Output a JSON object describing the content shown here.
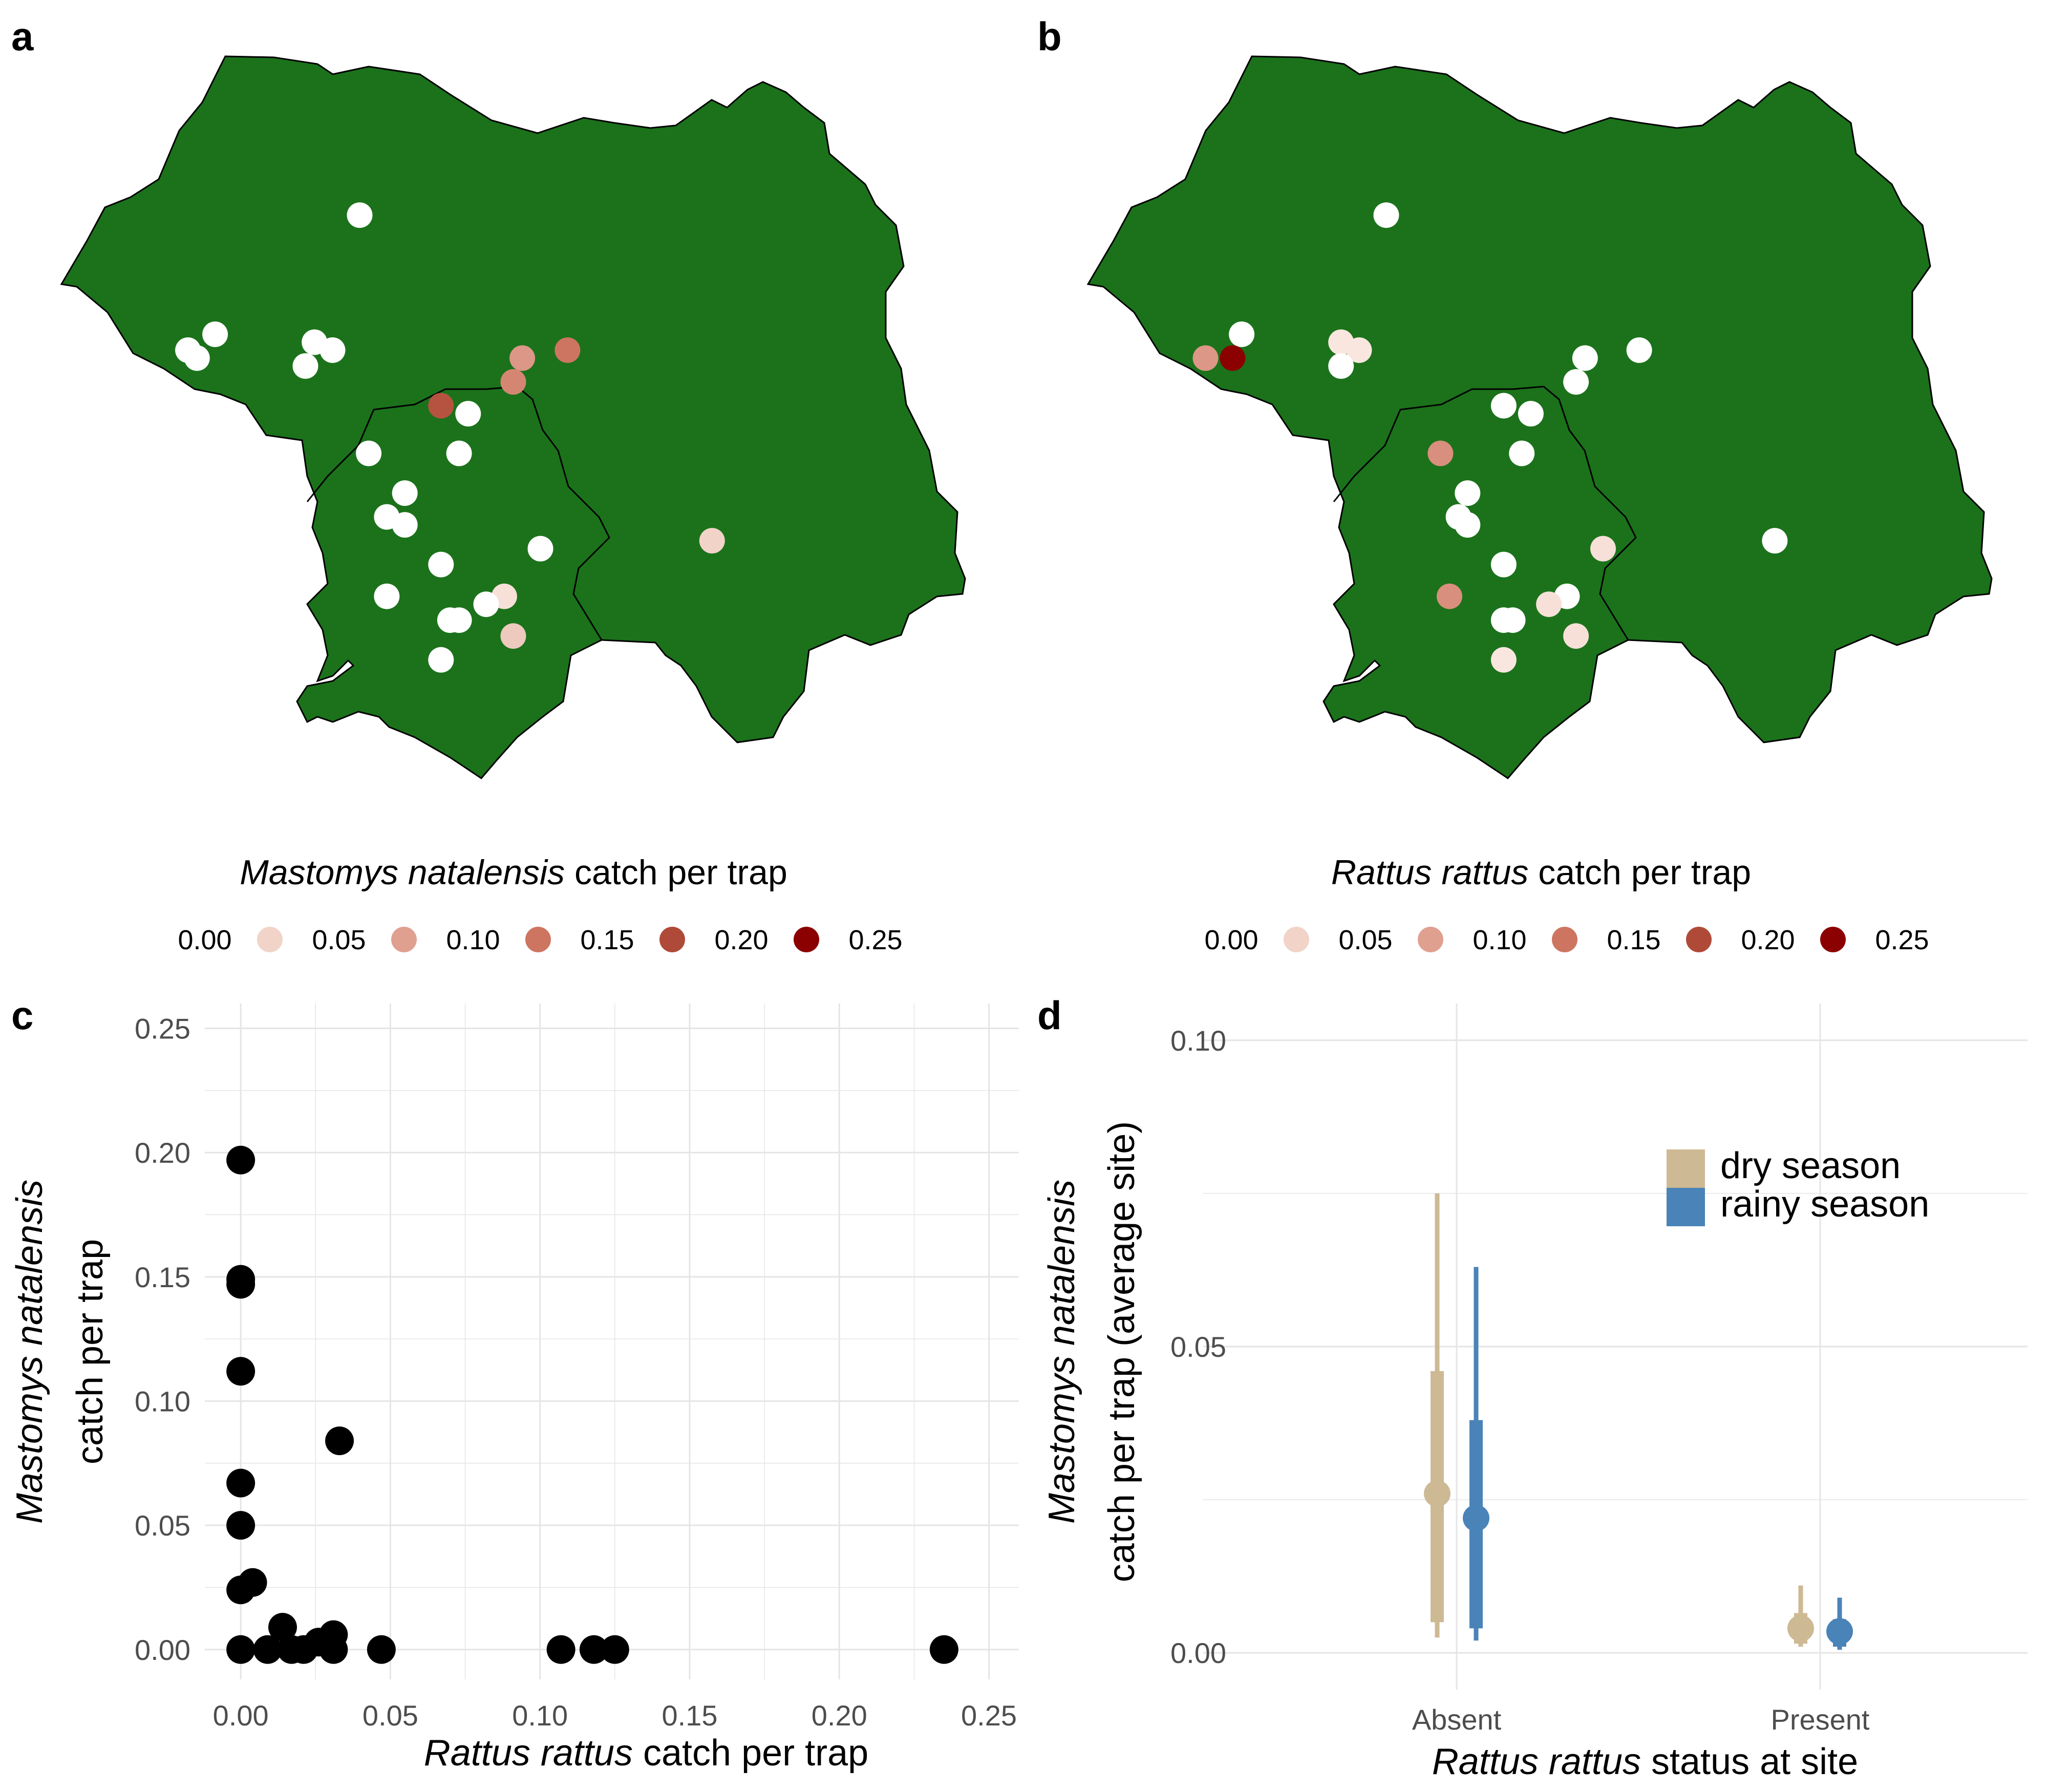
{
  "panels": {
    "a": {
      "letter": "a",
      "legend_title_italic": "Mastomys natalensis",
      "legend_title_rest": " catch per trap"
    },
    "b": {
      "letter": "b",
      "legend_title_italic": "Rattus rattus",
      "legend_title_rest": " catch per trap"
    },
    "c": {
      "letter": "c",
      "xlabel_italic": "Rattus rattus",
      "xlabel_rest": " catch per trap",
      "ylabel_line1": "Mastomys natalensis",
      "ylabel_line2": "catch per trap"
    },
    "d": {
      "letter": "d",
      "xlabel_italic": "Rattus rattus",
      "xlabel_rest": " status at site",
      "ylabel_line1": "Mastomys natalensis",
      "ylabel_line2": "catch per trap (average site)"
    }
  },
  "colors": {
    "map_fill": "#1b721b",
    "map_border": "#000000",
    "scale": [
      "#f2d3c8",
      "#e0a090",
      "#cd7560",
      "#b04a38",
      "#8b0000"
    ],
    "dry": "#cdb993",
    "rainy": "#4a83b8",
    "point": "#000000",
    "grid": "#e5e5e5"
  },
  "chart_data": [
    {
      "panel": "a",
      "type": "scatter",
      "kind": "map",
      "legend": {
        "values": [
          "0.00",
          "0.05",
          "0.10",
          "0.15",
          "0.20",
          "0.25"
        ]
      },
      "points": [
        {
          "x": 0.33,
          "y": 0.28,
          "v": 0.0
        },
        {
          "x": 0.17,
          "y": 0.43,
          "v": 0.0
        },
        {
          "x": 0.14,
          "y": 0.45,
          "v": 0.0
        },
        {
          "x": 0.15,
          "y": 0.46,
          "v": 0.0
        },
        {
          "x": 0.28,
          "y": 0.44,
          "v": 0.0
        },
        {
          "x": 0.3,
          "y": 0.45,
          "v": 0.0
        },
        {
          "x": 0.27,
          "y": 0.47,
          "v": 0.0
        },
        {
          "x": 0.51,
          "y": 0.46,
          "v": 0.11
        },
        {
          "x": 0.5,
          "y": 0.49,
          "v": 0.13
        },
        {
          "x": 0.56,
          "y": 0.45,
          "v": 0.15
        },
        {
          "x": 0.42,
          "y": 0.52,
          "v": 0.19
        },
        {
          "x": 0.45,
          "y": 0.53,
          "v": 0.0
        },
        {
          "x": 0.34,
          "y": 0.58,
          "v": 0.0
        },
        {
          "x": 0.44,
          "y": 0.58,
          "v": 0.0
        },
        {
          "x": 0.38,
          "y": 0.63,
          "v": 0.0
        },
        {
          "x": 0.36,
          "y": 0.66,
          "v": 0.0
        },
        {
          "x": 0.38,
          "y": 0.67,
          "v": 0.0
        },
        {
          "x": 0.53,
          "y": 0.7,
          "v": 0.0
        },
        {
          "x": 0.42,
          "y": 0.72,
          "v": 0.0
        },
        {
          "x": 0.36,
          "y": 0.76,
          "v": 0.0
        },
        {
          "x": 0.49,
          "y": 0.76,
          "v": 0.03
        },
        {
          "x": 0.47,
          "y": 0.77,
          "v": 0.0
        },
        {
          "x": 0.43,
          "y": 0.79,
          "v": 0.0
        },
        {
          "x": 0.44,
          "y": 0.79,
          "v": 0.0
        },
        {
          "x": 0.5,
          "y": 0.81,
          "v": 0.06
        },
        {
          "x": 0.42,
          "y": 0.84,
          "v": 0.0
        },
        {
          "x": 0.72,
          "y": 0.69,
          "v": 0.05
        }
      ]
    },
    {
      "panel": "b",
      "type": "scatter",
      "kind": "map",
      "legend": {
        "values": [
          "0.00",
          "0.05",
          "0.10",
          "0.15",
          "0.20",
          "0.25"
        ]
      },
      "points": [
        {
          "x": 0.33,
          "y": 0.28,
          "v": 0.0
        },
        {
          "x": 0.17,
          "y": 0.43,
          "v": 0.0
        },
        {
          "x": 0.13,
          "y": 0.46,
          "v": 0.11
        },
        {
          "x": 0.16,
          "y": 0.46,
          "v": 0.25
        },
        {
          "x": 0.28,
          "y": 0.44,
          "v": 0.02
        },
        {
          "x": 0.3,
          "y": 0.45,
          "v": 0.02
        },
        {
          "x": 0.28,
          "y": 0.47,
          "v": 0.0
        },
        {
          "x": 0.55,
          "y": 0.46,
          "v": 0.0
        },
        {
          "x": 0.54,
          "y": 0.49,
          "v": 0.0
        },
        {
          "x": 0.61,
          "y": 0.45,
          "v": 0.0
        },
        {
          "x": 0.46,
          "y": 0.52,
          "v": 0.0
        },
        {
          "x": 0.49,
          "y": 0.53,
          "v": 0.0
        },
        {
          "x": 0.39,
          "y": 0.58,
          "v": 0.12
        },
        {
          "x": 0.48,
          "y": 0.58,
          "v": 0.0
        },
        {
          "x": 0.42,
          "y": 0.63,
          "v": 0.0
        },
        {
          "x": 0.41,
          "y": 0.66,
          "v": 0.0
        },
        {
          "x": 0.42,
          "y": 0.67,
          "v": 0.0
        },
        {
          "x": 0.57,
          "y": 0.7,
          "v": 0.03
        },
        {
          "x": 0.46,
          "y": 0.72,
          "v": 0.0
        },
        {
          "x": 0.4,
          "y": 0.76,
          "v": 0.12
        },
        {
          "x": 0.53,
          "y": 0.76,
          "v": 0.0
        },
        {
          "x": 0.51,
          "y": 0.77,
          "v": 0.03
        },
        {
          "x": 0.46,
          "y": 0.79,
          "v": 0.0
        },
        {
          "x": 0.47,
          "y": 0.79,
          "v": 0.0
        },
        {
          "x": 0.54,
          "y": 0.81,
          "v": 0.03
        },
        {
          "x": 0.46,
          "y": 0.84,
          "v": 0.02
        },
        {
          "x": 0.76,
          "y": 0.69,
          "v": 0.0
        }
      ]
    },
    {
      "panel": "c",
      "type": "scatter",
      "xlim": [
        -0.012,
        0.26
      ],
      "ylim": [
        -0.012,
        0.26
      ],
      "xticks": [
        "0.00",
        "0.05",
        "0.10",
        "0.15",
        "0.20",
        "0.25"
      ],
      "yticks": [
        "0.00",
        "0.05",
        "0.10",
        "0.15",
        "0.20",
        "0.25"
      ],
      "points": [
        {
          "x": 0.0,
          "y": 0.197
        },
        {
          "x": 0.0,
          "y": 0.149
        },
        {
          "x": 0.0,
          "y": 0.147
        },
        {
          "x": 0.0,
          "y": 0.112
        },
        {
          "x": 0.0,
          "y": 0.067
        },
        {
          "x": 0.0,
          "y": 0.05
        },
        {
          "x": 0.0,
          "y": 0.024
        },
        {
          "x": 0.004,
          "y": 0.027
        },
        {
          "x": 0.033,
          "y": 0.084
        },
        {
          "x": 0.0,
          "y": 0.0
        },
        {
          "x": 0.009,
          "y": 0.0
        },
        {
          "x": 0.014,
          "y": 0.009
        },
        {
          "x": 0.017,
          "y": 0.0
        },
        {
          "x": 0.021,
          "y": 0.0
        },
        {
          "x": 0.026,
          "y": 0.003
        },
        {
          "x": 0.031,
          "y": 0.006
        },
        {
          "x": 0.031,
          "y": 0.0
        },
        {
          "x": 0.047,
          "y": 0.0
        },
        {
          "x": 0.107,
          "y": 0.0
        },
        {
          "x": 0.118,
          "y": 0.0
        },
        {
          "x": 0.125,
          "y": 0.0
        },
        {
          "x": 0.235,
          "y": 0.0
        }
      ]
    },
    {
      "panel": "d",
      "type": "scatter",
      "kind": "pointrange",
      "categories": [
        "Absent",
        "Present"
      ],
      "ylim": [
        -0.006,
        0.106
      ],
      "yticks": [
        "0.00",
        "0.05",
        "0.10"
      ],
      "series": [
        {
          "name": "dry season",
          "color_key": "dry",
          "points": [
            {
              "category": "Absent",
              "median": 0.026,
              "inner": [
                0.005,
                0.046
              ],
              "outer": [
                0.0025,
                0.075
              ]
            },
            {
              "category": "Present",
              "median": 0.004,
              "inner": [
                0.0015,
                0.0065
              ],
              "outer": [
                0.001,
                0.011
              ]
            }
          ]
        },
        {
          "name": "rainy season",
          "color_key": "rainy",
          "points": [
            {
              "category": "Absent",
              "median": 0.022,
              "inner": [
                0.004,
                0.038
              ],
              "outer": [
                0.002,
                0.063
              ]
            },
            {
              "category": "Present",
              "median": 0.0035,
              "inner": [
                0.001,
                0.0055
              ],
              "outer": [
                0.0005,
                0.009
              ]
            }
          ]
        }
      ],
      "legend_position": "top-right"
    }
  ]
}
